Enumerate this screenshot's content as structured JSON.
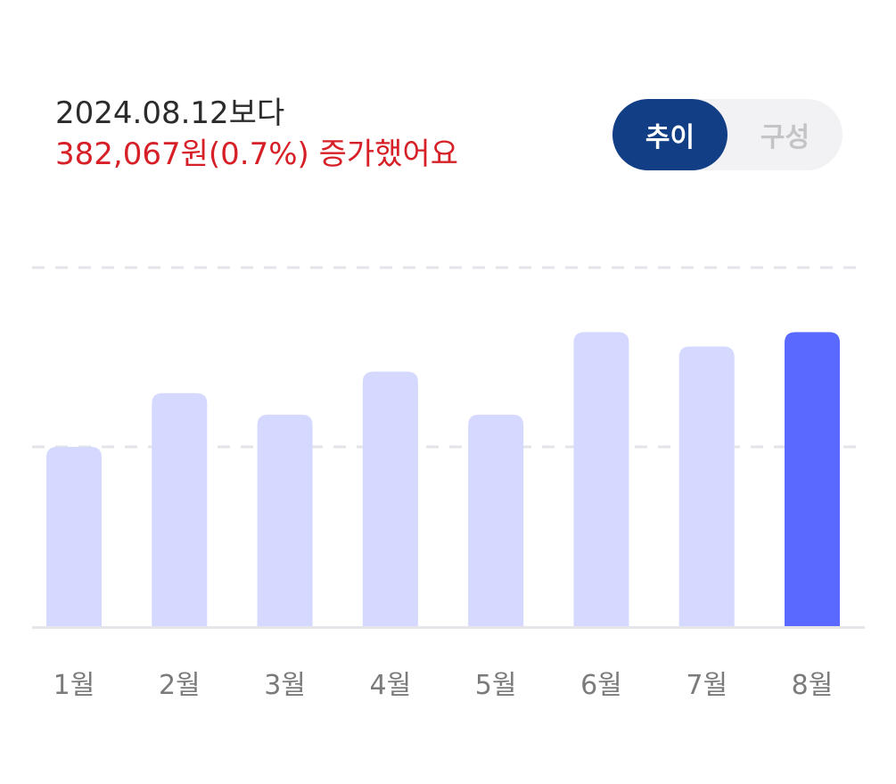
{
  "summary": {
    "compare_text": "2024.08.12보다",
    "change_text": "382,067원(0.7%) 증가했어요"
  },
  "toggle": {
    "active_label": "추이",
    "inactive_label": "구성"
  },
  "chart_data": {
    "type": "bar",
    "categories": [
      "1월",
      "2월",
      "3월",
      "4월",
      "5월",
      "6월",
      "7월",
      "8월"
    ],
    "values": [
      1.0,
      1.3,
      1.18,
      1.42,
      1.18,
      1.64,
      1.56,
      1.64
    ],
    "ylim": [
      0,
      2
    ],
    "grid": true,
    "highlight_index": 7,
    "colors": {
      "bar": "#d5d8ff",
      "highlight": "#5a69ff",
      "grid": "#e3e4ea",
      "axis": "#e6e6ea",
      "tick_label": "#7b7b7b"
    }
  }
}
